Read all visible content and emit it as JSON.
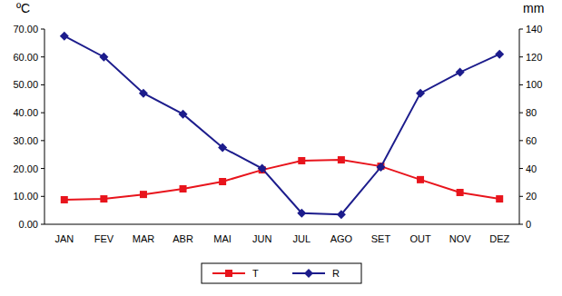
{
  "chart_data": {
    "type": "line",
    "y_label": "ºC",
    "y2_label": "mm",
    "categories": [
      "JAN",
      "FEV",
      "MAR",
      "ABR",
      "MAI",
      "JUN",
      "JUL",
      "AGO",
      "SET",
      "OUT",
      "NOV",
      "DEZ"
    ],
    "series": [
      {
        "name": "T",
        "color": "#e8141c",
        "marker": "square",
        "line_style": "solid",
        "values": [
          8.8,
          9.1,
          10.7,
          12.7,
          15.3,
          19.5,
          22.8,
          23.1,
          20.8,
          16.0,
          11.4,
          9.1
        ]
      },
      {
        "name": "R",
        "color": "#1c1c8c",
        "marker": "diamond",
        "line_style": "solid",
        "axis": "y2",
        "values": [
          135,
          120,
          94,
          79,
          55,
          40,
          8,
          7,
          41,
          94,
          109,
          122
        ]
      }
    ],
    "ylim": [
      0,
      70
    ],
    "yticks": [
      {
        "value": 0,
        "label": "0.00"
      },
      {
        "value": 10,
        "label": "10.00"
      },
      {
        "value": 20,
        "label": "20.00"
      },
      {
        "value": 30,
        "label": "30.00"
      },
      {
        "value": 40,
        "label": "40.00"
      },
      {
        "value": 50,
        "label": "50.00"
      },
      {
        "value": 60,
        "label": "60.00"
      },
      {
        "value": 70,
        "label": "70.00"
      }
    ],
    "y2lim": [
      0,
      140
    ],
    "y2ticks": [
      0,
      20,
      40,
      60,
      80,
      100,
      120,
      140
    ],
    "grid": false,
    "legend": "bottom"
  }
}
